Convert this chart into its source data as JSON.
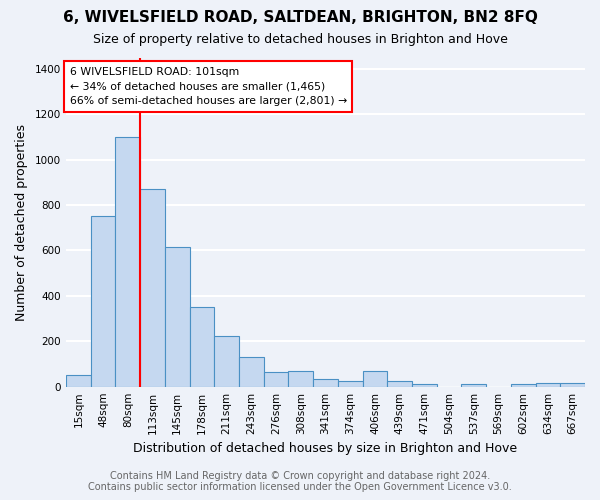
{
  "title": "6, WIVELSFIELD ROAD, SALTDEAN, BRIGHTON, BN2 8FQ",
  "subtitle": "Size of property relative to detached houses in Brighton and Hove",
  "xlabel": "Distribution of detached houses by size in Brighton and Hove",
  "ylabel": "Number of detached properties",
  "categories": [
    "15sqm",
    "48sqm",
    "80sqm",
    "113sqm",
    "145sqm",
    "178sqm",
    "211sqm",
    "243sqm",
    "276sqm",
    "308sqm",
    "341sqm",
    "374sqm",
    "406sqm",
    "439sqm",
    "471sqm",
    "504sqm",
    "537sqm",
    "569sqm",
    "602sqm",
    "634sqm",
    "667sqm"
  ],
  "values": [
    50,
    750,
    1100,
    870,
    615,
    350,
    225,
    130,
    65,
    70,
    35,
    25,
    70,
    25,
    10,
    0,
    10,
    0,
    10,
    15,
    15
  ],
  "bar_color": "#c5d8f0",
  "bar_edge_color": "#4a90c4",
  "red_line_index": 2.5,
  "annotation_title": "6 WIVELSFIELD ROAD: 101sqm",
  "annotation_line1": "← 34% of detached houses are smaller (1,465)",
  "annotation_line2": "66% of semi-detached houses are larger (2,801) →",
  "annotation_box_color": "white",
  "annotation_box_edge": "red",
  "footer1": "Contains HM Land Registry data © Crown copyright and database right 2024.",
  "footer2": "Contains public sector information licensed under the Open Government Licence v3.0.",
  "ylim": [
    0,
    1450
  ],
  "yticks": [
    0,
    200,
    400,
    600,
    800,
    1000,
    1200,
    1400
  ],
  "background_color": "#eef2f9",
  "grid_color": "white",
  "title_fontsize": 11,
  "subtitle_fontsize": 9,
  "xlabel_fontsize": 9,
  "ylabel_fontsize": 9,
  "tick_fontsize": 7.5,
  "footer_fontsize": 7
}
